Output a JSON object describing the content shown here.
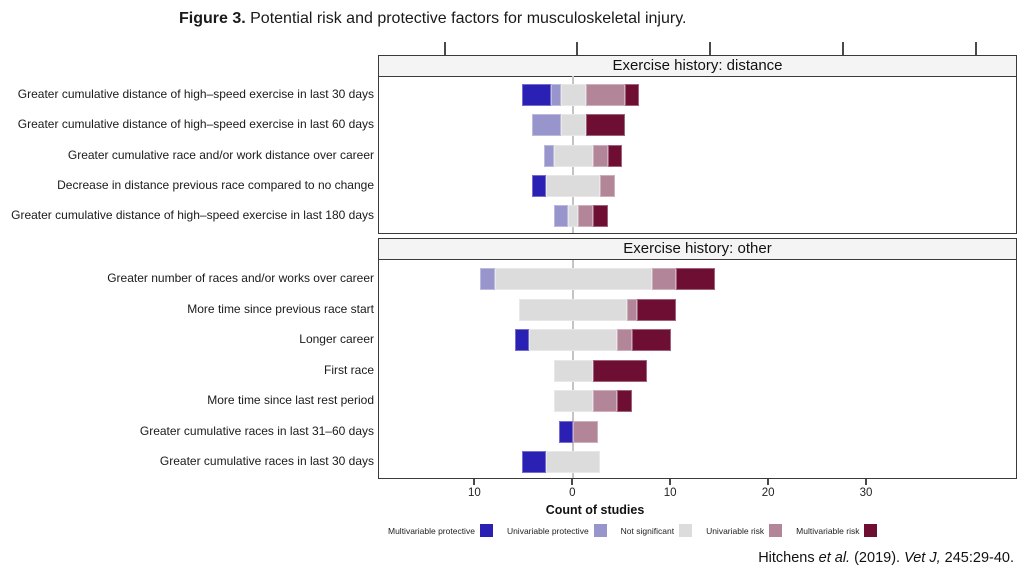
{
  "figure_title": {
    "prefix": "Figure 3.",
    "text": " Potential risk and protective factors for musculoskeletal injury."
  },
  "citation": {
    "author": "Hitchens ",
    "etal": "et al.",
    "middle": " (2019). ",
    "journal": "Vet J,",
    "pages": " 245:29-40."
  },
  "colors": {
    "multivariable_protective": "#2a21b4",
    "univariable_protective": "#9795cb",
    "not_significant": "#dcdcdc",
    "univariable_risk": "#b28698",
    "multivariable_risk": "#6e0e33"
  },
  "chart_data": {
    "type": "bar",
    "subtype": "horizontal-diverging-stacked",
    "xlabel": "Count of studies",
    "x_ticks": [
      -10,
      0,
      10,
      20,
      30
    ],
    "x_tick_labels": [
      "10",
      "0",
      "10",
      "20",
      "30"
    ],
    "xlim": [
      -19.8,
      45.3
    ],
    "series_keys": [
      "multivariable_protective",
      "univariable_protective",
      "not_significant",
      "univariable_risk",
      "multivariable_risk"
    ],
    "layout_note": "protective counts extend left of zero, risk counts right; the not-significant segment is centered on zero",
    "panels": [
      {
        "title": "Exercise history: distance",
        "rows": [
          {
            "label": "Greater cumulative distance of high–speed exercise in last 30 days",
            "values": [
              3,
              1,
              2.5,
              4,
              1.5
            ]
          },
          {
            "label": "Greater cumulative distance of high–speed exercise in last 60 days",
            "values": [
              0,
              3,
              2.5,
              0,
              4
            ]
          },
          {
            "label": "Greater cumulative race and/or work distance over career",
            "values": [
              0,
              1,
              4,
              1.5,
              1.5
            ]
          },
          {
            "label": "Decrease in distance previous race compared to no change",
            "values": [
              1.5,
              0,
              5.5,
              1.5,
              0
            ]
          },
          {
            "label": "Greater cumulative distance of high–speed exercise in last 180 days",
            "values": [
              0,
              1.5,
              1,
              1.5,
              1.5
            ]
          }
        ]
      },
      {
        "title": "Exercise history: other",
        "rows": [
          {
            "label": "Greater number of races and/or works over career",
            "values": [
              0,
              1.5,
              16,
              2.5,
              4
            ]
          },
          {
            "label": "More time since previous race start",
            "values": [
              0,
              0,
              11,
              1,
              4
            ]
          },
          {
            "label": "Longer career",
            "values": [
              1.5,
              0,
              9,
              1.5,
              4
            ]
          },
          {
            "label": "First race",
            "values": [
              0,
              0,
              4,
              0,
              5.5
            ]
          },
          {
            "label": "More time since last rest period",
            "values": [
              0,
              0,
              4,
              2.5,
              1.5
            ]
          },
          {
            "label": "Greater cumulative races in last 31–60 days",
            "values": [
              1.5,
              0,
              0,
              2.5,
              0
            ]
          },
          {
            "label": "Greater cumulative races in last 30 days",
            "values": [
              2.5,
              0,
              5.5,
              0,
              0
            ]
          }
        ]
      }
    ],
    "legend": [
      {
        "label": "Multivariable protective",
        "key": "multivariable_protective"
      },
      {
        "label": "Univariable protective",
        "key": "univariable_protective"
      },
      {
        "label": "Not significant",
        "key": "not_significant"
      },
      {
        "label": "Univariable risk",
        "key": "univariable_risk"
      },
      {
        "label": "Multivariable risk",
        "key": "multivariable_risk"
      }
    ]
  }
}
